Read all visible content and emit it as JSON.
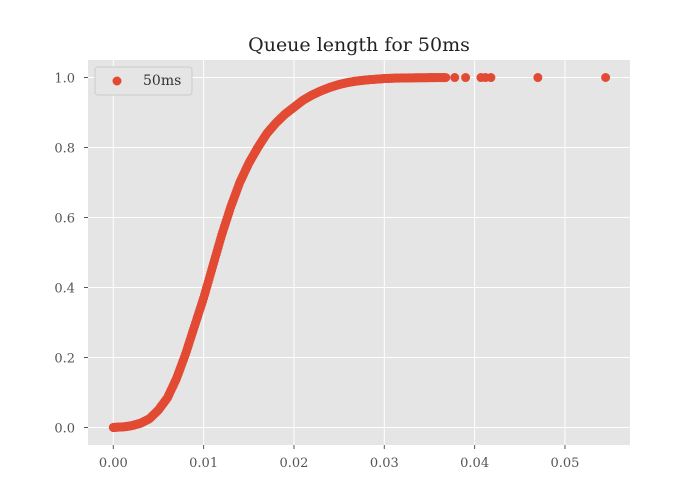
{
  "chart_data": {
    "type": "scatter",
    "title": "Queue length for 50ms",
    "xlabel": "",
    "ylabel": "",
    "xlim": [
      -0.0028,
      0.0572
    ],
    "ylim": [
      -0.05,
      1.05
    ],
    "x_ticks": [
      0.0,
      0.01,
      0.02,
      0.03,
      0.04,
      0.05
    ],
    "x_tick_labels": [
      "0.00",
      "0.01",
      "0.02",
      "0.03",
      "0.04",
      "0.05"
    ],
    "y_ticks": [
      0.0,
      0.2,
      0.4,
      0.6,
      0.8,
      1.0
    ],
    "y_tick_labels": [
      "0.0",
      "0.2",
      "0.4",
      "0.6",
      "0.8",
      "1.0"
    ],
    "grid": true,
    "legend_position": "top-left",
    "series": [
      {
        "name": "50ms",
        "color": "#E24A33",
        "points": [
          [
            0.0,
            0.0
          ],
          [
            0.0002,
            0.0005
          ],
          [
            0.0012,
            0.002
          ],
          [
            0.002,
            0.005
          ],
          [
            0.003,
            0.012
          ],
          [
            0.004,
            0.025
          ],
          [
            0.005,
            0.05
          ],
          [
            0.006,
            0.085
          ],
          [
            0.007,
            0.14
          ],
          [
            0.008,
            0.21
          ],
          [
            0.009,
            0.29
          ],
          [
            0.01,
            0.37
          ],
          [
            0.011,
            0.46
          ],
          [
            0.012,
            0.55
          ],
          [
            0.013,
            0.63
          ],
          [
            0.014,
            0.7
          ],
          [
            0.015,
            0.755
          ],
          [
            0.016,
            0.8
          ],
          [
            0.017,
            0.84
          ],
          [
            0.018,
            0.87
          ],
          [
            0.019,
            0.895
          ],
          [
            0.02,
            0.915
          ],
          [
            0.021,
            0.935
          ],
          [
            0.022,
            0.95
          ],
          [
            0.023,
            0.962
          ],
          [
            0.024,
            0.972
          ],
          [
            0.025,
            0.98
          ],
          [
            0.026,
            0.986
          ],
          [
            0.027,
            0.99
          ],
          [
            0.028,
            0.993
          ],
          [
            0.029,
            0.995
          ],
          [
            0.03,
            0.997
          ],
          [
            0.031,
            0.998
          ],
          [
            0.032,
            0.9985
          ],
          [
            0.033,
            0.999
          ],
          [
            0.034,
            0.9993
          ],
          [
            0.035,
            0.9995
          ],
          [
            0.0358,
            0.9997
          ],
          [
            0.0368,
            0.9998
          ],
          [
            0.0378,
            0.9999
          ],
          [
            0.039,
            0.99993
          ],
          [
            0.0407,
            0.99995
          ],
          [
            0.0412,
            0.99996
          ],
          [
            0.0418,
            0.99997
          ],
          [
            0.047,
            0.99998
          ],
          [
            0.0545,
            1.0
          ]
        ]
      }
    ]
  }
}
